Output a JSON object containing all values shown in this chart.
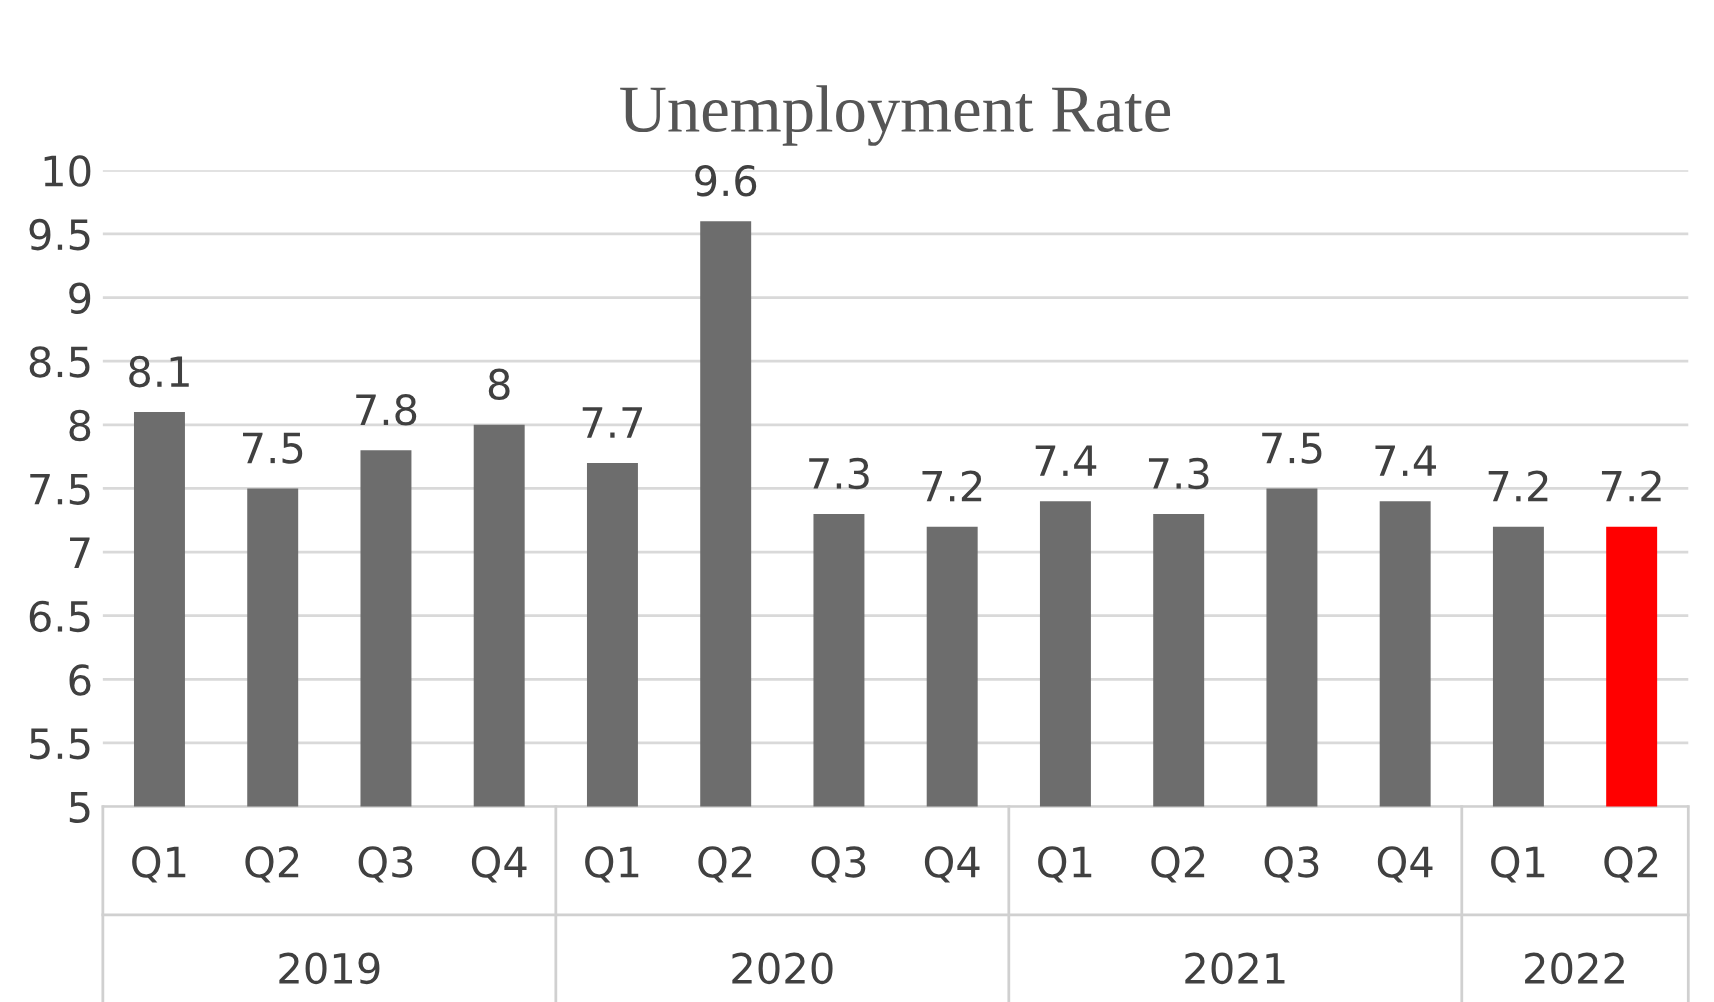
{
  "chart_data": {
    "type": "bar",
    "title": "Unemployment Rate",
    "categories": [
      "Q1",
      "Q2",
      "Q3",
      "Q4",
      "Q1",
      "Q2",
      "Q3",
      "Q4",
      "Q1",
      "Q2",
      "Q3",
      "Q4",
      "Q1",
      "Q2"
    ],
    "values": [
      8.1,
      7.5,
      7.8,
      8,
      7.7,
      9.6,
      7.3,
      7.2,
      7.4,
      7.3,
      7.5,
      7.4,
      7.2,
      7.2
    ],
    "colors": [
      "#6d6d6d",
      "#6d6d6d",
      "#6d6d6d",
      "#6d6d6d",
      "#6d6d6d",
      "#6d6d6d",
      "#6d6d6d",
      "#6d6d6d",
      "#6d6d6d",
      "#6d6d6d",
      "#6d6d6d",
      "#6d6d6d",
      "#6d6d6d",
      "#ff0000"
    ],
    "annotations": [
      "2019",
      "2020",
      "2021",
      "2022"
    ],
    "ylim": [
      5,
      10
    ],
    "yticks": [
      5,
      5.5,
      6,
      6.5,
      7,
      7.5,
      8,
      8.5,
      9,
      9.5,
      10
    ],
    "data_labels": true,
    "grid": "y",
    "legend": false
  }
}
